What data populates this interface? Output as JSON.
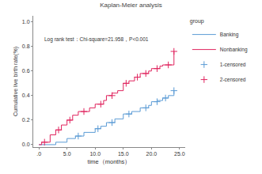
{
  "chart_data": {
    "type": "line",
    "title": "Kaplan-Meier analysis",
    "x_label": "time（months）",
    "y_label": "Cumulative live birth rate(%)",
    "annotation": "Log rank test：Chi-square=21.958，P<0.001",
    "legend_title": "group",
    "legend": "right",
    "grid": false,
    "xlim": [
      -1,
      26
    ],
    "ylim": [
      -0.02,
      1.05
    ],
    "xticks": [
      {
        "value": 0,
        "label": ".0"
      },
      {
        "value": 5,
        "label": "5.0"
      },
      {
        "value": 10,
        "label": "10.0"
      },
      {
        "value": 15,
        "label": "15.0"
      },
      {
        "value": 20,
        "label": "20.0"
      },
      {
        "value": 25,
        "label": "25.0"
      }
    ],
    "yticks": [
      {
        "value": 0,
        "label": "0.0"
      },
      {
        "value": 0.2,
        "label": "0.2"
      },
      {
        "value": 0.4,
        "label": "0.4"
      },
      {
        "value": 0.6,
        "label": "0.6"
      },
      {
        "value": 0.8,
        "label": "0.8"
      },
      {
        "value": 1.0,
        "label": "1.0"
      }
    ],
    "series": [
      {
        "name": "Banking",
        "color": "#5b9bd5",
        "line_style": "step",
        "x": [
          0,
          3,
          5,
          6.5,
          8,
          10,
          11,
          12,
          13.5,
          15,
          16.5,
          18,
          19.5,
          20,
          21,
          22,
          23,
          24
        ],
        "values": [
          0,
          0.02,
          0.05,
          0.07,
          0.1,
          0.13,
          0.15,
          0.18,
          0.21,
          0.25,
          0.27,
          0.3,
          0.32,
          0.35,
          0.36,
          0.38,
          0.4,
          0.44
        ]
      },
      {
        "name": "Nonbanking",
        "color": "#e0245e",
        "line_style": "step",
        "x": [
          0,
          0.5,
          2,
          3,
          4,
          5,
          6,
          7,
          9,
          10,
          11.5,
          12,
          13,
          14,
          15,
          16,
          17,
          18,
          19.5,
          20,
          21.5,
          22,
          24
        ],
        "values": [
          0,
          0.02,
          0.08,
          0.12,
          0.16,
          0.2,
          0.24,
          0.27,
          0.3,
          0.33,
          0.36,
          0.4,
          0.42,
          0.44,
          0.5,
          0.52,
          0.55,
          0.58,
          0.6,
          0.62,
          0.64,
          0.65,
          0.76
        ]
      },
      {
        "name": "1-censored",
        "color": "#5b9bd5",
        "type": "scatter",
        "marker": "cross",
        "x": [
          7,
          10.5,
          13,
          16,
          19,
          21,
          22.5,
          24
        ],
        "values": [
          0.07,
          0.13,
          0.18,
          0.25,
          0.3,
          0.35,
          0.38,
          0.44
        ]
      },
      {
        "name": "2-censored",
        "color": "#e0245e",
        "type": "scatter",
        "marker": "cross",
        "x": [
          1,
          3.5,
          5.5,
          8,
          11,
          13,
          15.5,
          17.5,
          19,
          21,
          23,
          24
        ],
        "values": [
          0.02,
          0.12,
          0.2,
          0.27,
          0.33,
          0.4,
          0.5,
          0.55,
          0.58,
          0.62,
          0.65,
          0.76
        ]
      }
    ]
  }
}
